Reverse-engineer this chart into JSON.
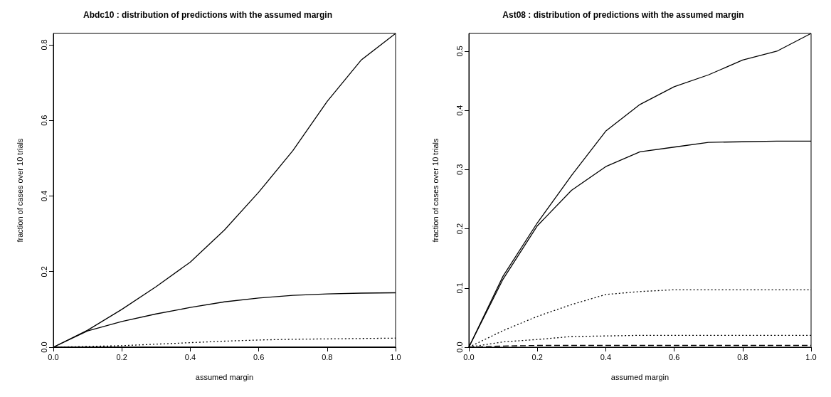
{
  "chart_data": [
    {
      "type": "line",
      "title": "Abdc10 : distribution of predictions with the assumed margin",
      "xlabel": "assumed margin",
      "ylabel": "fraction of cases over 10 trials",
      "x": [
        0,
        0.1,
        0.2,
        0.3,
        0.4,
        0.5,
        0.6,
        0.7,
        0.8,
        0.9,
        1.0
      ],
      "xlim": [
        0,
        1
      ],
      "xticks": [
        {
          "value": 0,
          "label": "0.0"
        },
        {
          "value": 0.2,
          "label": "0.2"
        },
        {
          "value": 0.4,
          "label": "0.4"
        },
        {
          "value": 0.6,
          "label": "0.6"
        },
        {
          "value": 0.8,
          "label": "0.8"
        },
        {
          "value": 1,
          "label": "1.0"
        }
      ],
      "ylim": [
        0,
        0.83
      ],
      "yticks": [
        {
          "value": 0,
          "label": "0.0"
        },
        0.2,
        0.4,
        0.6,
        0.8
      ],
      "grid": false,
      "marker": "none",
      "series": [
        {
          "color": "#000000",
          "line_style": "solid",
          "values": [
            0,
            0.045,
            0.1,
            0.16,
            0.225,
            0.31,
            0.41,
            0.52,
            0.65,
            0.76,
            0.83
          ]
        },
        {
          "color": "#000000",
          "line_style": "solid",
          "values": [
            0,
            0.043,
            0.068,
            0.088,
            0.105,
            0.12,
            0.13,
            0.137,
            0.141,
            0.143,
            0.144
          ]
        },
        {
          "color": "#000000",
          "line_style": "dotted",
          "values": [
            0,
            0.002,
            0.004,
            0.008,
            0.012,
            0.016,
            0.019,
            0.021,
            0.022,
            0.023,
            0.024
          ]
        },
        {
          "color": "#000000",
          "line_style": "solid",
          "values": [
            0,
            0,
            0,
            0,
            0,
            0,
            0,
            0,
            0,
            0,
            0
          ]
        }
      ]
    },
    {
      "type": "line",
      "title": "Ast08 : distribution of predictions with the assumed margin",
      "xlabel": "assumed margin",
      "ylabel": "fraction of cases over 10 trials",
      "x": [
        0,
        0.1,
        0.2,
        0.3,
        0.4,
        0.5,
        0.6,
        0.7,
        0.8,
        0.9,
        1.0
      ],
      "xlim": [
        0,
        1
      ],
      "xticks": [
        {
          "value": 0,
          "label": "0.0"
        },
        {
          "value": 0.2,
          "label": "0.2"
        },
        {
          "value": 0.4,
          "label": "0.4"
        },
        {
          "value": 0.6,
          "label": "0.6"
        },
        {
          "value": 0.8,
          "label": "0.8"
        },
        {
          "value": 1,
          "label": "1.0"
        }
      ],
      "ylim": [
        0,
        0.53
      ],
      "yticks": [
        {
          "value": 0,
          "label": "0.0"
        },
        0.1,
        0.2,
        0.3,
        0.4,
        0.5
      ],
      "grid": false,
      "marker": "none",
      "series": [
        {
          "color": "#000000",
          "line_style": "solid",
          "values": [
            0,
            0.12,
            0.21,
            0.29,
            0.365,
            0.41,
            0.44,
            0.46,
            0.485,
            0.5,
            0.53
          ]
        },
        {
          "color": "#000000",
          "line_style": "solid",
          "values": [
            0,
            0.115,
            0.205,
            0.265,
            0.305,
            0.33,
            0.338,
            0.346,
            0.347,
            0.348,
            0.348
          ]
        },
        {
          "color": "#000000",
          "line_style": "dotted",
          "values": [
            0,
            0.028,
            0.052,
            0.072,
            0.089,
            0.094,
            0.097,
            0.097,
            0.097,
            0.097,
            0.097
          ]
        },
        {
          "color": "#000000",
          "line_style": "dotted",
          "values": [
            0,
            0.009,
            0.013,
            0.018,
            0.019,
            0.02,
            0.02,
            0.02,
            0.02,
            0.02,
            0.02
          ]
        },
        {
          "color": "#000000",
          "line_style": "dashed",
          "values": [
            0,
            0.002,
            0.003,
            0.003,
            0.003,
            0.003,
            0.003,
            0.003,
            0.003,
            0.003,
            0.003
          ]
        }
      ]
    }
  ]
}
